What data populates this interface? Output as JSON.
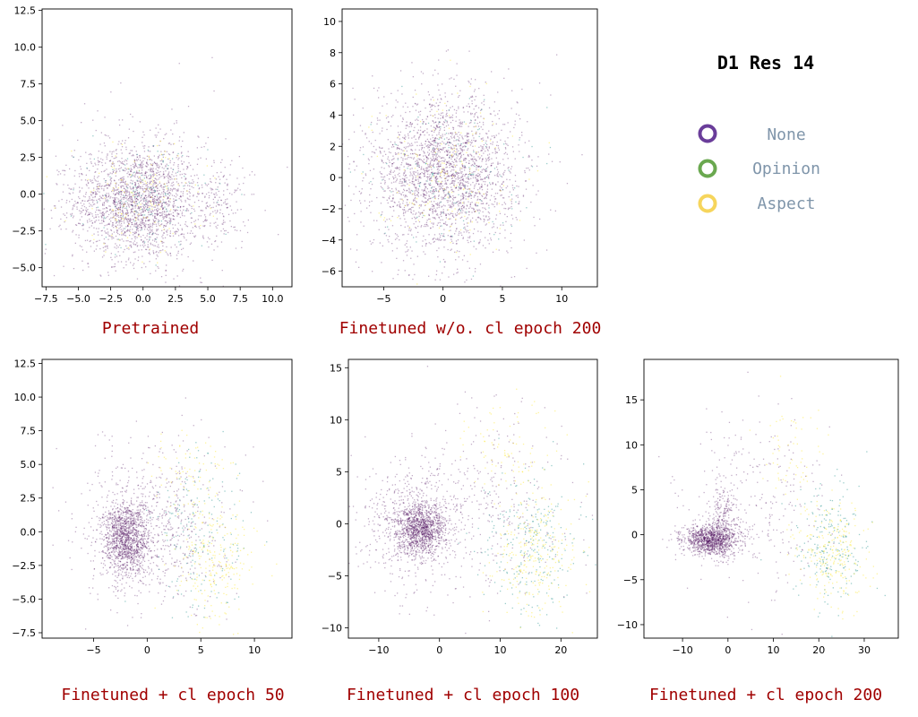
{
  "legend": {
    "title": "D1 Res 14",
    "items": [
      {
        "label": "None",
        "color": "#6a3d9a"
      },
      {
        "label": "Opinion",
        "color": "#6aa84f"
      },
      {
        "label": "Aspect",
        "color": "#f6d55c"
      }
    ]
  },
  "colors": {
    "caption": "#a00000",
    "legend_text": "#7f95aa",
    "none_points": "#440154",
    "opinion_points": "#21918c",
    "aspect_points": "#fde725"
  },
  "chart_data": [
    {
      "type": "scatter",
      "caption": "Pretrained",
      "xlim": [
        -7.8,
        11.5
      ],
      "ylim": [
        -6.3,
        12.6
      ],
      "xticks": [
        -7.5,
        -5.0,
        -2.5,
        0.0,
        2.5,
        5.0,
        7.5,
        10.0
      ],
      "xtick_labels": [
        "−7.5",
        "−5.0",
        "−2.5",
        "0.0",
        "2.5",
        "5.0",
        "7.5",
        "10.0"
      ],
      "yticks": [
        -5.0,
        -2.5,
        0.0,
        2.5,
        5.0,
        7.5,
        10.0,
        12.5
      ],
      "ytick_labels": [
        "−5.0",
        "−2.5",
        "0.0",
        "2.5",
        "5.0",
        "7.5",
        "10.0",
        "12.5"
      ],
      "clusters": [
        {
          "class": "None",
          "cx": -0.5,
          "cy": -0.5,
          "sx": 2.4,
          "sy": 1.9,
          "n": 1900
        },
        {
          "class": "None",
          "cx": 6.0,
          "cy": -0.5,
          "sx": 0.9,
          "sy": 1.6,
          "n": 150
        },
        {
          "class": "None",
          "cx": 0.0,
          "cy": 0.0,
          "sx": 4.0,
          "sy": 3.2,
          "n": 300
        },
        {
          "class": "Opinion",
          "cx": 0.0,
          "cy": -0.3,
          "sx": 2.5,
          "sy": 1.8,
          "n": 140
        },
        {
          "class": "Aspect",
          "cx": -0.3,
          "cy": -0.2,
          "sx": 2.6,
          "sy": 1.8,
          "n": 140
        }
      ]
    },
    {
      "type": "scatter",
      "caption": "Finetuned w/o. cl epoch 200",
      "xlim": [
        -8.5,
        13.0
      ],
      "ylim": [
        -7.0,
        10.8
      ],
      "xticks": [
        -5,
        0,
        5,
        10
      ],
      "xtick_labels": [
        "−5",
        "0",
        "5",
        "10"
      ],
      "yticks": [
        -6,
        -4,
        -2,
        0,
        2,
        4,
        6,
        8,
        10
      ],
      "ytick_labels": [
        "−6",
        "−4",
        "−2",
        "0",
        "2",
        "4",
        "6",
        "8",
        "10"
      ],
      "clusters": [
        {
          "class": "None",
          "cx": 0.0,
          "cy": 0.2,
          "sx": 3.0,
          "sy": 2.4,
          "n": 2200
        },
        {
          "class": "None",
          "cx": 0.5,
          "cy": 0.5,
          "sx": 4.5,
          "sy": 3.4,
          "n": 250
        },
        {
          "class": "Opinion",
          "cx": 0.5,
          "cy": 0.3,
          "sx": 3.0,
          "sy": 2.3,
          "n": 150
        },
        {
          "class": "Aspect",
          "cx": 0.0,
          "cy": 0.5,
          "sx": 3.0,
          "sy": 2.4,
          "n": 160
        }
      ]
    },
    {
      "type": "scatter",
      "caption": "Finetuned + cl epoch 50",
      "xlim": [
        -9.8,
        13.5
      ],
      "ylim": [
        -7.9,
        12.8
      ],
      "xticks": [
        -5,
        0,
        5,
        10
      ],
      "xtick_labels": [
        "−5",
        "0",
        "5",
        "10"
      ],
      "yticks": [
        -7.5,
        -5.0,
        -2.5,
        0.0,
        2.5,
        5.0,
        7.5,
        10.0,
        12.5
      ],
      "ytick_labels": [
        "−7.5",
        "−5.0",
        "−2.5",
        "0.0",
        "2.5",
        "5.0",
        "7.5",
        "10.0",
        "12.5"
      ],
      "clusters": [
        {
          "class": "None",
          "cx": -2.0,
          "cy": -0.5,
          "sx": 1.1,
          "sy": 1.4,
          "n": 1300
        },
        {
          "class": "None",
          "cx": 0.5,
          "cy": 0.5,
          "sx": 3.3,
          "sy": 3.0,
          "n": 700
        },
        {
          "class": "Opinion",
          "cx": 5.0,
          "cy": 0.0,
          "sx": 2.3,
          "sy": 3.2,
          "n": 180
        },
        {
          "class": "Aspect",
          "cx": 6.5,
          "cy": -2.5,
          "sx": 1.8,
          "sy": 2.0,
          "n": 220
        },
        {
          "class": "Aspect",
          "cx": 4.0,
          "cy": 4.0,
          "sx": 2.0,
          "sy": 2.0,
          "n": 90
        }
      ]
    },
    {
      "type": "scatter",
      "caption": "Finetuned + cl epoch 100",
      "xlim": [
        -15.0,
        26.0
      ],
      "ylim": [
        -11.0,
        15.8
      ],
      "xticks": [
        -10,
        0,
        10,
        20
      ],
      "xtick_labels": [
        "−10",
        "0",
        "10",
        "20"
      ],
      "yticks": [
        -10,
        -5,
        0,
        5,
        10,
        15
      ],
      "ytick_labels": [
        "−10",
        "−5",
        "0",
        "5",
        "10",
        "15"
      ],
      "clusters": [
        {
          "class": "None",
          "cx": -3.0,
          "cy": -0.5,
          "sx": 2.0,
          "sy": 1.2,
          "n": 1100
        },
        {
          "class": "None",
          "cx": -5.0,
          "cy": 0.0,
          "sx": 4.0,
          "sy": 2.8,
          "n": 600
        },
        {
          "class": "None",
          "cx": 8.0,
          "cy": 2.0,
          "sx": 6.5,
          "sy": 4.5,
          "n": 350
        },
        {
          "class": "Opinion",
          "cx": 15.0,
          "cy": -2.0,
          "sx": 4.0,
          "sy": 3.5,
          "n": 250
        },
        {
          "class": "Aspect",
          "cx": 16.0,
          "cy": -3.0,
          "sx": 3.5,
          "sy": 3.0,
          "n": 260
        },
        {
          "class": "Aspect",
          "cx": 11.0,
          "cy": 7.0,
          "sx": 3.5,
          "sy": 2.5,
          "n": 80
        }
      ]
    },
    {
      "type": "scatter",
      "caption": "Finetuned + cl epoch 200",
      "xlim": [
        -18.5,
        37.5
      ],
      "ylim": [
        -11.5,
        19.5
      ],
      "xticks": [
        -10,
        0,
        10,
        20,
        30
      ],
      "xtick_labels": [
        "−10",
        "0",
        "10",
        "20",
        "30"
      ],
      "yticks": [
        -10,
        -5,
        0,
        5,
        10,
        15
      ],
      "ytick_labels": [
        "−10",
        "−5",
        "0",
        "5",
        "10",
        "15"
      ],
      "clusters": [
        {
          "class": "None",
          "cx": -4.0,
          "cy": -0.5,
          "sx": 3.0,
          "sy": 0.8,
          "n": 1100
        },
        {
          "class": "None",
          "cx": -1.0,
          "cy": 1.5,
          "sx": 1.5,
          "sy": 2.0,
          "n": 250
        },
        {
          "class": "None",
          "cx": 5.0,
          "cy": 3.0,
          "sx": 8.0,
          "sy": 5.5,
          "n": 300
        },
        {
          "class": "Opinion",
          "cx": 22.0,
          "cy": -1.5,
          "sx": 4.0,
          "sy": 3.5,
          "n": 220
        },
        {
          "class": "Aspect",
          "cx": 23.0,
          "cy": -2.5,
          "sx": 4.0,
          "sy": 3.0,
          "n": 240
        },
        {
          "class": "Aspect",
          "cx": 14.0,
          "cy": 9.0,
          "sx": 3.5,
          "sy": 3.0,
          "n": 60
        }
      ]
    }
  ]
}
